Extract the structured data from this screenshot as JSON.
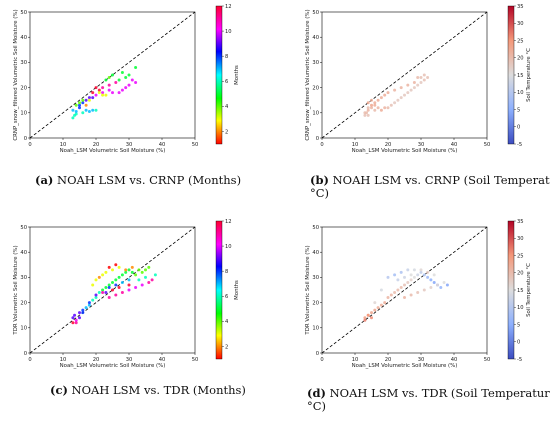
{
  "colors": {
    "diag_line": "#000000",
    "axes": "#000000"
  },
  "chart_data": [
    {
      "type": "scatter",
      "panel": "a",
      "caption_label": "(a)",
      "caption": "NOAH LSM vs. CRNP (Months)",
      "xlabel": "Noah_LSM Volumetric Soil Moisture (%)",
      "ylabel": "CRNP_snow_filtered Volumetric Soil Moisture (%)",
      "xlim": [
        0,
        50
      ],
      "ylim": [
        0,
        50
      ],
      "xticks": [
        "0",
        "10",
        "20",
        "30",
        "40",
        "50"
      ],
      "yticks": [
        "0",
        "10",
        "20",
        "30",
        "40",
        "50"
      ],
      "colorbar": {
        "label": "Months",
        "min": 1,
        "max": 12,
        "ticks": [
          "2",
          "4",
          "6",
          "8",
          "10",
          "12"
        ],
        "cmap": "hsv"
      },
      "reference_line": "1:1 dashed",
      "points": [
        [
          13,
          8,
          6
        ],
        [
          13.5,
          9,
          6
        ],
        [
          14,
          9.5,
          6
        ],
        [
          14,
          10.5,
          7
        ],
        [
          13,
          11,
          7
        ],
        [
          15,
          12,
          8
        ],
        [
          16,
          10,
          6
        ],
        [
          17,
          11,
          7
        ],
        [
          18,
          10.5,
          7
        ],
        [
          19,
          11,
          7
        ],
        [
          20,
          11,
          6
        ],
        [
          15,
          13,
          8
        ],
        [
          16,
          14,
          8
        ],
        [
          17,
          15,
          9
        ],
        [
          18,
          16,
          9
        ],
        [
          19,
          16,
          9
        ],
        [
          20,
          17,
          10
        ],
        [
          22,
          18,
          10
        ],
        [
          24,
          19,
          10
        ],
        [
          25,
          18,
          10
        ],
        [
          27,
          18,
          10
        ],
        [
          28,
          19,
          10
        ],
        [
          29,
          20,
          10
        ],
        [
          30,
          21,
          10
        ],
        [
          31,
          23,
          10
        ],
        [
          32,
          22,
          10
        ],
        [
          26,
          22,
          11
        ],
        [
          24,
          21,
          11
        ],
        [
          22,
          20,
          11
        ],
        [
          21,
          19,
          12
        ],
        [
          20,
          20,
          12
        ],
        [
          19,
          18,
          12
        ],
        [
          23,
          23,
          5
        ],
        [
          25,
          25,
          5
        ],
        [
          27,
          23,
          5
        ],
        [
          29,
          24,
          5
        ],
        [
          30,
          25,
          5
        ],
        [
          24,
          24,
          4
        ],
        [
          28,
          26,
          5
        ],
        [
          32,
          28,
          5
        ],
        [
          14,
          13,
          4
        ],
        [
          15,
          14,
          4
        ],
        [
          16,
          15,
          4
        ],
        [
          21,
          18,
          3
        ],
        [
          22,
          17,
          3
        ],
        [
          18,
          15,
          3
        ],
        [
          23,
          17,
          3
        ],
        [
          17,
          13,
          2
        ]
      ]
    },
    {
      "type": "scatter",
      "panel": "b",
      "caption_label": "(b)",
      "caption": "NOAH LSM vs. CRNP (Soil Temperature °C)",
      "xlabel": "Noah_LSM Volumetric Soil Moisture (%)",
      "ylabel": "CRNP_snow_filtered Volumetric Soil Moisture (%)",
      "xlim": [
        0,
        50
      ],
      "ylim": [
        0,
        50
      ],
      "xticks": [
        "0",
        "10",
        "20",
        "30",
        "40",
        "50"
      ],
      "yticks": [
        "0",
        "10",
        "20",
        "30",
        "40",
        "50"
      ],
      "colorbar": {
        "label": "Soil Temperature °C",
        "min": -5,
        "max": 35,
        "ticks": [
          "-5",
          "0",
          "5",
          "10",
          "15",
          "20",
          "25",
          "30",
          "35"
        ],
        "cmap": "coolwarm"
      },
      "reference_line": "1:1 dashed",
      "points": [
        [
          13,
          9,
          19
        ],
        [
          13.5,
          10,
          20
        ],
        [
          14,
          11,
          21
        ],
        [
          14,
          12,
          20
        ],
        [
          15,
          12,
          21
        ],
        [
          16,
          11,
          20
        ],
        [
          17,
          12,
          21
        ],
        [
          18,
          11,
          22
        ],
        [
          19,
          12,
          21
        ],
        [
          20,
          12,
          20
        ],
        [
          21,
          13,
          19
        ],
        [
          22,
          14,
          18
        ],
        [
          23,
          15,
          18
        ],
        [
          24,
          16,
          18
        ],
        [
          25,
          17,
          18
        ],
        [
          26,
          18,
          18
        ],
        [
          27,
          19,
          18
        ],
        [
          28,
          20,
          18
        ],
        [
          29,
          21,
          18
        ],
        [
          30,
          22,
          18
        ],
        [
          31,
          23,
          19
        ],
        [
          32,
          24,
          19
        ],
        [
          31,
          25,
          19
        ],
        [
          30,
          24,
          19
        ],
        [
          15,
          13,
          23
        ],
        [
          16,
          14,
          22
        ],
        [
          17,
          15,
          22
        ],
        [
          18,
          16,
          22
        ],
        [
          19,
          17,
          22
        ],
        [
          20,
          18,
          22
        ],
        [
          22,
          19,
          21
        ],
        [
          24,
          20,
          21
        ],
        [
          26,
          21,
          21
        ],
        [
          28,
          22,
          21
        ],
        [
          29,
          24,
          20
        ],
        [
          14,
          14,
          23
        ],
        [
          15,
          15,
          22
        ],
        [
          13,
          10,
          20
        ],
        [
          14,
          9,
          19
        ],
        [
          16,
          13,
          22
        ]
      ]
    },
    {
      "type": "scatter",
      "panel": "c",
      "caption_label": "(c)",
      "caption": "NOAH LSM vs. TDR (Months)",
      "xlabel": "Noah_LSM Volumetric Soil Moisture (%)",
      "ylabel": "TDR Volumetric Soil Moisture (%)",
      "xlim": [
        0,
        50
      ],
      "ylim": [
        0,
        50
      ],
      "xticks": [
        "0",
        "10",
        "20",
        "30",
        "40",
        "50"
      ],
      "yticks": [
        "0",
        "10",
        "20",
        "30",
        "40",
        "50"
      ],
      "colorbar": {
        "label": "Months",
        "min": 1,
        "max": 12,
        "ticks": [
          "2",
          "4",
          "6",
          "8",
          "10",
          "12"
        ],
        "cmap": "hsv"
      },
      "reference_line": "1:1 dashed",
      "points": [
        [
          13,
          14,
          9
        ],
        [
          13.5,
          15,
          9
        ],
        [
          14,
          13,
          10
        ],
        [
          15,
          14,
          9
        ],
        [
          16,
          16,
          8
        ],
        [
          17,
          18,
          7
        ],
        [
          18,
          19,
          7
        ],
        [
          19,
          21,
          6
        ],
        [
          20,
          22,
          6
        ],
        [
          21,
          24,
          6
        ],
        [
          22,
          25,
          5
        ],
        [
          23,
          26,
          5
        ],
        [
          24,
          27,
          5
        ],
        [
          25,
          28,
          5
        ],
        [
          26,
          29,
          5
        ],
        [
          27,
          30,
          5
        ],
        [
          28,
          31,
          5
        ],
        [
          29,
          32,
          5
        ],
        [
          30,
          33,
          5
        ],
        [
          31,
          32,
          5
        ],
        [
          32,
          31,
          4
        ],
        [
          33,
          33,
          4
        ],
        [
          34,
          32,
          4
        ],
        [
          35,
          33,
          4
        ],
        [
          36,
          34,
          4
        ],
        [
          22,
          31,
          3
        ],
        [
          23,
          32,
          3
        ],
        [
          25,
          33,
          3
        ],
        [
          27,
          34,
          3
        ],
        [
          29,
          33,
          2
        ],
        [
          31,
          34,
          2
        ],
        [
          24,
          34,
          1
        ],
        [
          26,
          35,
          1
        ],
        [
          21,
          30,
          2
        ],
        [
          20,
          29,
          3
        ],
        [
          19,
          27,
          3
        ],
        [
          24,
          22,
          11
        ],
        [
          26,
          23,
          11
        ],
        [
          28,
          24,
          11
        ],
        [
          30,
          25,
          10
        ],
        [
          32,
          26,
          10
        ],
        [
          34,
          27,
          10
        ],
        [
          36,
          28,
          11
        ],
        [
          37,
          29,
          11
        ],
        [
          30,
          27,
          12
        ],
        [
          27,
          26,
          12
        ],
        [
          25,
          25,
          12
        ],
        [
          22,
          24,
          11
        ],
        [
          13,
          12,
          12
        ],
        [
          14,
          12,
          11
        ],
        [
          28,
          28,
          7
        ],
        [
          30,
          29,
          7
        ],
        [
          24,
          26,
          8
        ],
        [
          26,
          27,
          8
        ],
        [
          38,
          31,
          6
        ],
        [
          35,
          30,
          6
        ],
        [
          33,
          29,
          6
        ],
        [
          23,
          24,
          9
        ],
        [
          20,
          23,
          9
        ],
        [
          18,
          20,
          8
        ],
        [
          16,
          17,
          8
        ],
        [
          15,
          16,
          9
        ]
      ]
    },
    {
      "type": "scatter",
      "panel": "d",
      "caption_label": "(d)",
      "caption": "NOAH LSM vs. TDR (Soil Temperature °C)",
      "xlabel": "Noah_LSM Volumetric Soil Moisture (%)",
      "ylabel": "TDR Volumetric Soil Moisture (%)",
      "xlim": [
        0,
        50
      ],
      "ylim": [
        0,
        50
      ],
      "xticks": [
        "0",
        "10",
        "20",
        "30",
        "40",
        "50"
      ],
      "yticks": [
        "0",
        "10",
        "20",
        "30",
        "40",
        "50"
      ],
      "colorbar": {
        "label": "Soil Temperature °C",
        "min": -5,
        "max": 35,
        "ticks": [
          "-5",
          "0",
          "5",
          "10",
          "15",
          "20",
          "25",
          "30",
          "35"
        ],
        "cmap": "coolwarm"
      },
      "reference_line": "1:1 dashed",
      "points": [
        [
          13,
          14,
          24
        ],
        [
          14,
          15,
          24
        ],
        [
          15,
          16,
          23
        ],
        [
          16,
          17,
          23
        ],
        [
          17,
          18,
          22
        ],
        [
          18,
          19,
          22
        ],
        [
          19,
          20,
          22
        ],
        [
          20,
          22,
          21
        ],
        [
          21,
          23,
          21
        ],
        [
          22,
          24,
          20
        ],
        [
          23,
          25,
          20
        ],
        [
          24,
          26,
          20
        ],
        [
          25,
          27,
          19
        ],
        [
          26,
          28,
          18
        ],
        [
          27,
          29,
          17
        ],
        [
          28,
          30,
          15
        ],
        [
          29,
          31,
          13
        ],
        [
          30,
          32,
          11
        ],
        [
          31,
          31,
          9
        ],
        [
          32,
          30,
          7
        ],
        [
          33,
          29,
          5
        ],
        [
          34,
          28,
          4
        ],
        [
          35,
          27,
          5
        ],
        [
          36,
          26,
          6
        ],
        [
          38,
          27,
          4
        ],
        [
          22,
          31,
          8
        ],
        [
          24,
          32,
          9
        ],
        [
          26,
          33,
          12
        ],
        [
          28,
          33,
          14
        ],
        [
          30,
          33,
          16
        ],
        [
          32,
          32,
          18
        ],
        [
          34,
          31,
          15
        ],
        [
          20,
          30,
          10
        ],
        [
          18,
          25,
          14
        ],
        [
          16,
          20,
          16
        ],
        [
          14,
          15,
          25
        ],
        [
          15,
          14,
          26
        ],
        [
          13,
          13,
          27
        ],
        [
          25,
          22,
          21
        ],
        [
          27,
          23,
          20
        ],
        [
          29,
          24,
          19
        ],
        [
          31,
          25,
          18
        ],
        [
          33,
          26,
          17
        ],
        [
          35,
          27,
          16
        ],
        [
          37,
          28,
          15
        ],
        [
          23,
          29,
          12
        ],
        [
          25,
          30,
          13
        ],
        [
          27,
          31,
          15
        ]
      ]
    }
  ],
  "captions_second_line": {
    "b": "°C)",
    "d": "°C)"
  }
}
